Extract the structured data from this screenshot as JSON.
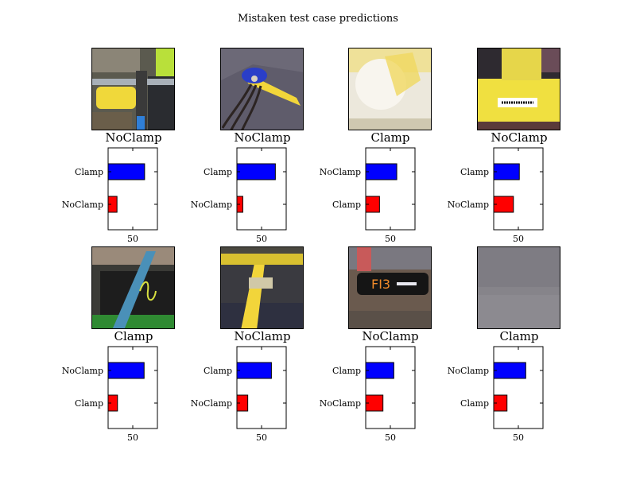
{
  "title": "Mistaken test case predictions",
  "colors": {
    "bar_top": "#0000ff",
    "bar_bottom": "#ff0000"
  },
  "chart_data": [
    {
      "type": "bar",
      "image_label": "NoClamp",
      "image_icon": "yellow-pipe-with-strap-photo",
      "categories": [
        "Clamp",
        "NoClamp"
      ],
      "values": [
        74,
        18
      ],
      "xticks": [
        50
      ],
      "xlim": [
        0,
        100
      ]
    },
    {
      "type": "bar",
      "image_label": "NoClamp",
      "image_icon": "cable-with-blue-cap-photo",
      "categories": [
        "Clamp",
        "NoClamp"
      ],
      "values": [
        78,
        12
      ],
      "xticks": [
        50
      ],
      "xlim": [
        0,
        100
      ]
    },
    {
      "type": "bar",
      "image_label": "Clamp",
      "image_icon": "blurry-yellow-pipe-photo",
      "categories": [
        "NoClamp",
        "Clamp"
      ],
      "values": [
        63,
        28
      ],
      "xticks": [
        50
      ],
      "xlim": [
        0,
        100
      ]
    },
    {
      "type": "bar",
      "image_label": "NoClamp",
      "image_icon": "yellow-pipe-fitting-photo",
      "categories": [
        "Clamp",
        "NoClamp"
      ],
      "values": [
        52,
        40
      ],
      "xticks": [
        50
      ],
      "xlim": [
        0,
        100
      ]
    },
    {
      "type": "bar",
      "image_label": "Clamp",
      "image_icon": "black-pipe-with-strap-photo",
      "categories": [
        "NoClamp",
        "Clamp"
      ],
      "values": [
        73,
        19
      ],
      "xticks": [
        50
      ],
      "xlim": [
        0,
        100
      ]
    },
    {
      "type": "bar",
      "image_label": "NoClamp",
      "image_icon": "yellow-pipe-in-trench-photo",
      "categories": [
        "Clamp",
        "NoClamp"
      ],
      "values": [
        70,
        22
      ],
      "xticks": [
        50
      ],
      "xlim": [
        0,
        100
      ]
    },
    {
      "type": "bar",
      "image_label": "NoClamp",
      "image_icon": "marked-black-pipe-photo",
      "categories": [
        "Clamp",
        "NoClamp"
      ],
      "values": [
        57,
        35
      ],
      "xticks": [
        50
      ],
      "xlim": [
        0,
        100
      ]
    },
    {
      "type": "bar",
      "image_label": "Clamp",
      "image_icon": "gravel-ground-photo",
      "categories": [
        "NoClamp",
        "Clamp"
      ],
      "values": [
        65,
        27
      ],
      "xticks": [
        50
      ],
      "xlim": [
        0,
        100
      ]
    }
  ]
}
